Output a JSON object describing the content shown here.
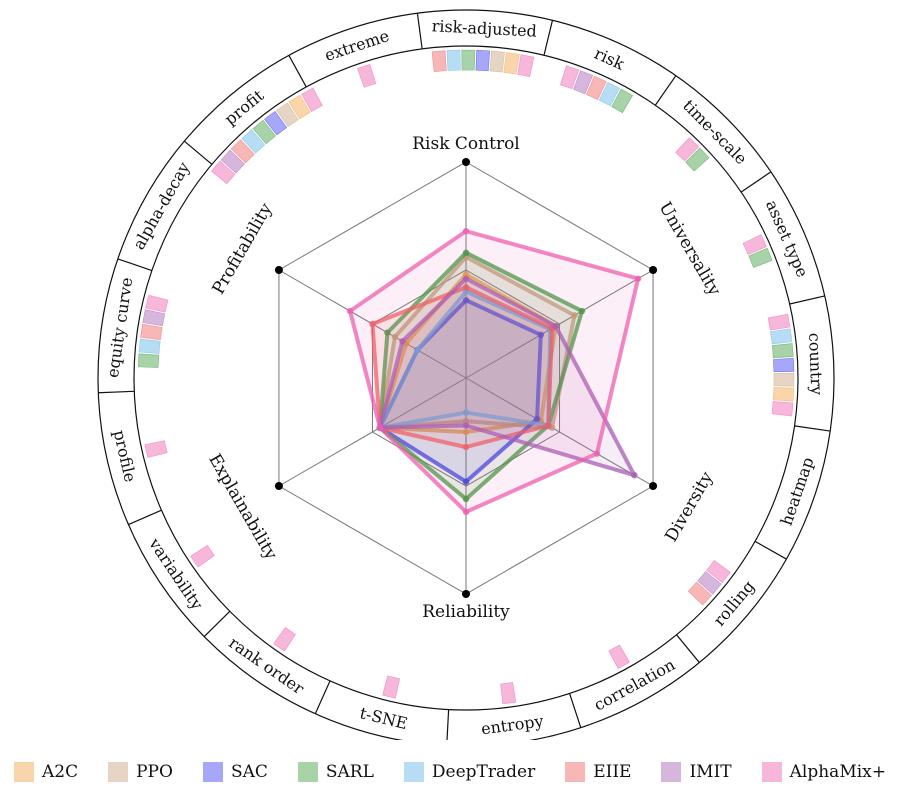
{
  "chart_data": {
    "type": "radar",
    "axes": [
      "Risk Control",
      "Universality",
      "Diversity",
      "Reliability",
      "Explainability",
      "Profitability"
    ],
    "rlim": [
      0,
      1
    ],
    "grid_levels": [
      0.5,
      1.0
    ],
    "series": [
      {
        "name": "A2C",
        "color": "#f5a043",
        "values": [
          0.48,
          0.48,
          0.4,
          0.25,
          0.46,
          0.32
        ]
      },
      {
        "name": "PPO",
        "color": "#c8a27c",
        "values": [
          0.56,
          0.58,
          0.46,
          0.2,
          0.46,
          0.38
        ]
      },
      {
        "name": "SAC",
        "color": "#3b3bf2",
        "values": [
          0.36,
          0.4,
          0.38,
          0.48,
          0.46,
          0.26
        ]
      },
      {
        "name": "SARL",
        "color": "#3f9c3f",
        "values": [
          0.58,
          0.62,
          0.44,
          0.56,
          0.46,
          0.42
        ]
      },
      {
        "name": "DeepTrader",
        "color": "#5fb3e6",
        "values": [
          0.4,
          0.45,
          0.44,
          0.16,
          0.46,
          0.26
        ]
      },
      {
        "name": "EIIE",
        "color": "#f06060",
        "values": [
          0.42,
          0.46,
          0.44,
          0.32,
          0.46,
          0.5
        ]
      },
      {
        "name": "IMIT",
        "color": "#a75db5",
        "values": [
          0.46,
          0.48,
          0.9,
          0.22,
          0.46,
          0.34
        ]
      },
      {
        "name": "AlphaMix+",
        "color": "#ee5fb0",
        "values": [
          0.68,
          0.92,
          0.7,
          0.62,
          0.46,
          0.62
        ]
      }
    ],
    "ring_labels": [
      "risk-adjusted",
      "risk",
      "time-scale",
      "asset type",
      "country",
      "heatmap",
      "rolling",
      "correlation",
      "entropy",
      "t-SNE",
      "rank order",
      "variability",
      "profile",
      "equity curve",
      "alpha-decay",
      "profit",
      "extreme"
    ],
    "ring_markers": {
      "risk-adjusted": [
        "EIIE",
        "DeepTrader",
        "SARL",
        "SAC",
        "PPO",
        "A2C",
        "AlphaMix+"
      ],
      "risk": [
        "AlphaMix+",
        "IMIT",
        "EIIE",
        "DeepTrader",
        "SARL"
      ],
      "time-scale": [
        "AlphaMix+",
        "SARL"
      ],
      "asset type": [
        "AlphaMix+",
        "SARL"
      ],
      "country": [
        "AlphaMix+",
        "DeepTrader",
        "SARL",
        "SAC",
        "PPO",
        "A2C",
        "AlphaMix+"
      ],
      "heatmap": [],
      "rolling": [
        "AlphaMix+",
        "IMIT",
        "EIIE"
      ],
      "correlation": [
        "AlphaMix+"
      ],
      "entropy": [
        "AlphaMix+"
      ],
      "t-SNE": [
        "AlphaMix+"
      ],
      "rank order": [
        "AlphaMix+"
      ],
      "variability": [
        "AlphaMix+"
      ],
      "profile": [
        "AlphaMix+"
      ],
      "equity curve": [
        "SARL",
        "DeepTrader",
        "EIIE",
        "IMIT",
        "AlphaMix+"
      ],
      "alpha-decay": [],
      "profit": [
        "AlphaMix+",
        "IMIT",
        "EIIE",
        "DeepTrader",
        "SARL",
        "SAC",
        "PPO",
        "A2C",
        "AlphaMix+"
      ],
      "extreme": [
        "AlphaMix+"
      ]
    },
    "legend": {
      "position": "bottom"
    }
  }
}
